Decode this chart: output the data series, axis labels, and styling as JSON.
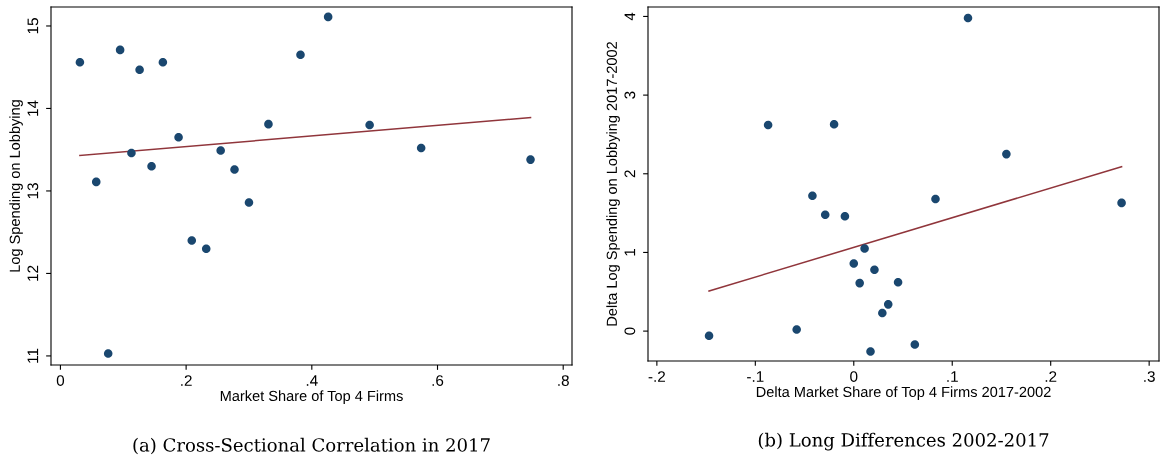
{
  "chart_data": [
    {
      "type": "scatter",
      "title": "(a) Cross-Sectional Correlation in 2017",
      "xlabel": "Market Share of Top 4 Firms",
      "ylabel": "Log Spending on Lobbying",
      "series": [
        {
          "marker": "circle",
          "color": "#1a476f",
          "x": [
            0.031,
            0.095,
            0.126,
            0.163,
            0.382,
            0.426,
            0.057,
            0.076,
            0.113,
            0.145,
            0.188,
            0.209,
            0.232,
            0.255,
            0.277,
            0.3,
            0.331,
            0.492,
            0.574,
            0.748
          ],
          "values": [
            14.56,
            14.71,
            14.47,
            14.56,
            14.65,
            15.11,
            13.11,
            11.03,
            13.46,
            13.3,
            13.65,
            12.4,
            12.3,
            13.49,
            13.26,
            12.86,
            13.81,
            13.8,
            13.52,
            13.38
          ]
        },
        {
          "type": "line",
          "marker": "none",
          "color": "#90353b",
          "x": [
            0.031,
            0.748
          ],
          "values": [
            13.43,
            13.89
          ]
        }
      ],
      "xlim": [
        -0.015,
        0.814
      ],
      "ylim": [
        10.89,
        15.23
      ],
      "xticks": [
        0,
        {
          "value": 0.2,
          "label": ".2"
        },
        {
          "value": 0.4,
          "label": ".4"
        },
        {
          "value": 0.6,
          "label": ".6"
        },
        {
          "value": 0.8,
          "label": ".8"
        }
      ],
      "yticks": [
        11,
        12,
        13,
        14,
        15
      ],
      "grid": false,
      "legend": false
    },
    {
      "type": "scatter",
      "title": "(b) Long Differences 2002-2017",
      "xlabel": "Delta Market Share of Top 4 Firms 2017-2002",
      "ylabel": "Delta Log Spending on Lobbying 2017-2002",
      "series": [
        {
          "marker": "circle",
          "color": "#1a476f",
          "x": [
            -0.147,
            -0.087,
            -0.058,
            -0.042,
            -0.029,
            -0.02,
            -0.009,
            0.0,
            0.006,
            0.011,
            0.017,
            0.021,
            0.029,
            0.035,
            0.045,
            0.062,
            0.083,
            0.116,
            0.155,
            0.272
          ],
          "values": [
            -0.06,
            2.62,
            0.02,
            1.72,
            1.48,
            2.63,
            1.46,
            0.86,
            0.61,
            1.05,
            -0.26,
            0.78,
            0.23,
            0.34,
            0.62,
            -0.17,
            1.68,
            3.98,
            2.25,
            1.63
          ]
        },
        {
          "type": "line",
          "marker": "none",
          "color": "#90353b",
          "x": [
            -0.147,
            0.272
          ],
          "values": [
            0.51,
            2.09
          ]
        }
      ],
      "xlim": [
        -0.209,
        0.31
      ],
      "ylim": [
        -0.38,
        4.12
      ],
      "xticks": [
        {
          "value": -0.2,
          "label": "-.2"
        },
        {
          "value": -0.1,
          "label": "-.1"
        },
        0,
        {
          "value": 0.1,
          "label": ".1"
        },
        {
          "value": 0.2,
          "label": ".2"
        },
        {
          "value": 0.3,
          "label": ".3"
        }
      ],
      "yticks": [
        0,
        1,
        2,
        3,
        4
      ],
      "grid": false,
      "legend": false
    }
  ]
}
